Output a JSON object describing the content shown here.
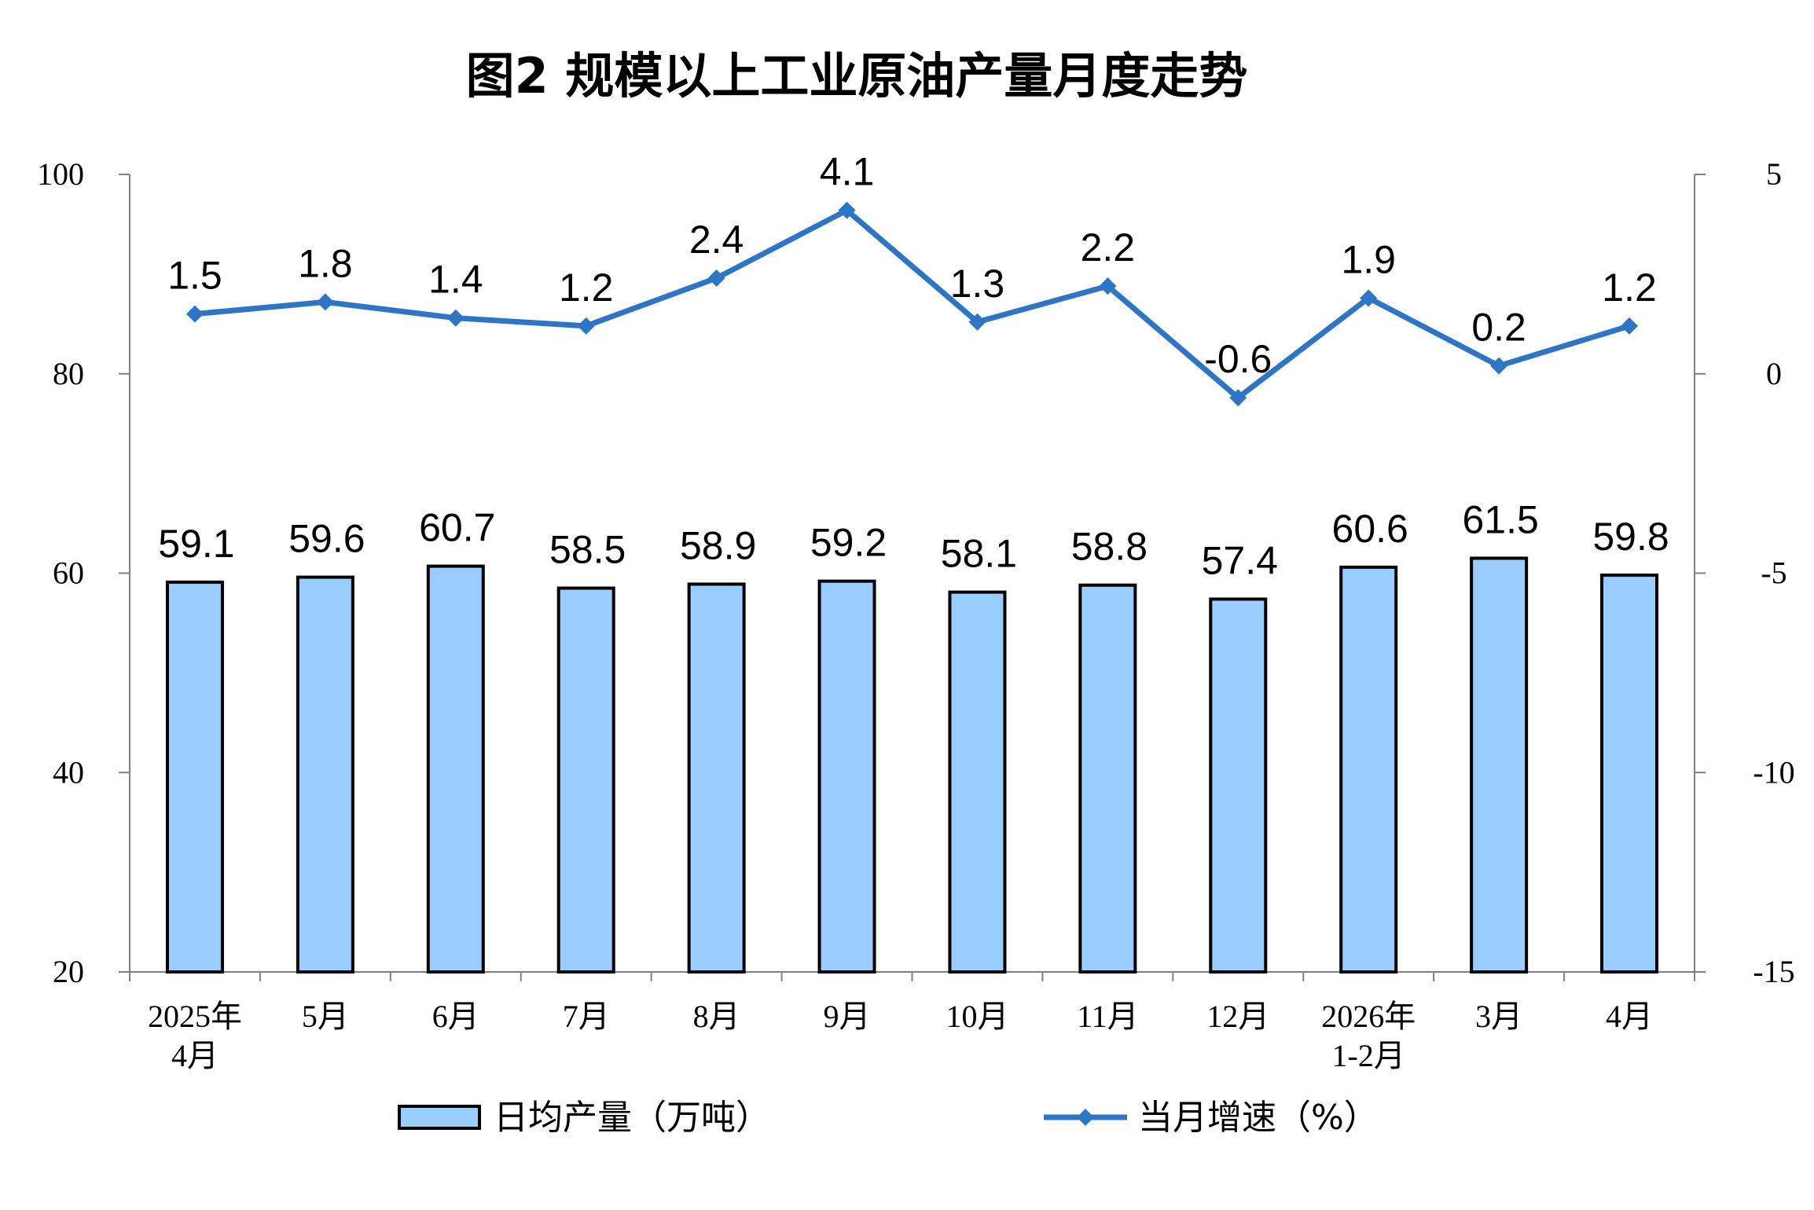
{
  "chart_data": {
    "type": "bar+line",
    "title": "图2  规模以上工业原油产量月度走势",
    "categories": [
      [
        "2025年",
        "4月"
      ],
      [
        "5月"
      ],
      [
        "6月"
      ],
      [
        "7月"
      ],
      [
        "8月"
      ],
      [
        "9月"
      ],
      [
        "10月"
      ],
      [
        "11月"
      ],
      [
        "12月"
      ],
      [
        "2026年",
        "1-2月"
      ],
      [
        "3月"
      ],
      [
        "4月"
      ]
    ],
    "series": [
      {
        "name": "日均产量（万吨）",
        "type": "bar",
        "axis": "left",
        "color": "#99CCFF",
        "values": [
          59.1,
          59.6,
          60.7,
          58.5,
          58.9,
          59.2,
          58.1,
          58.8,
          57.4,
          60.6,
          61.5,
          59.8
        ],
        "labels": [
          "59.1",
          "59.6",
          "60.7",
          "58.5",
          "58.9",
          "59.2",
          "58.1",
          "58.8",
          "57.4",
          "60.6",
          "61.5",
          "59.8"
        ]
      },
      {
        "name": "当月增速（%）",
        "type": "line",
        "axis": "right",
        "color": "#2E75C6",
        "marker": "diamond",
        "values": [
          1.5,
          1.8,
          1.4,
          1.2,
          2.4,
          4.1,
          1.3,
          2.2,
          -0.6,
          1.9,
          0.2,
          1.2
        ],
        "labels": [
          "1.5",
          "1.8",
          "1.4",
          "1.2",
          "2.4",
          "4.1",
          "1.3",
          "2.2",
          "-0.6",
          "1.9",
          "0.2",
          "1.2"
        ]
      }
    ],
    "y_left": {
      "ylim": [
        20,
        100
      ],
      "ticks": [
        20,
        40,
        60,
        80,
        100
      ],
      "tick_labels": [
        "20",
        "40",
        "60",
        "80",
        "100"
      ]
    },
    "y_right": {
      "ylim": [
        -15,
        5
      ],
      "ticks": [
        -15,
        -10,
        -5,
        0,
        5
      ],
      "tick_labels": [
        "-15",
        "-10",
        "-5",
        "0",
        "5"
      ]
    },
    "grid": false,
    "legend_position": "bottom"
  }
}
